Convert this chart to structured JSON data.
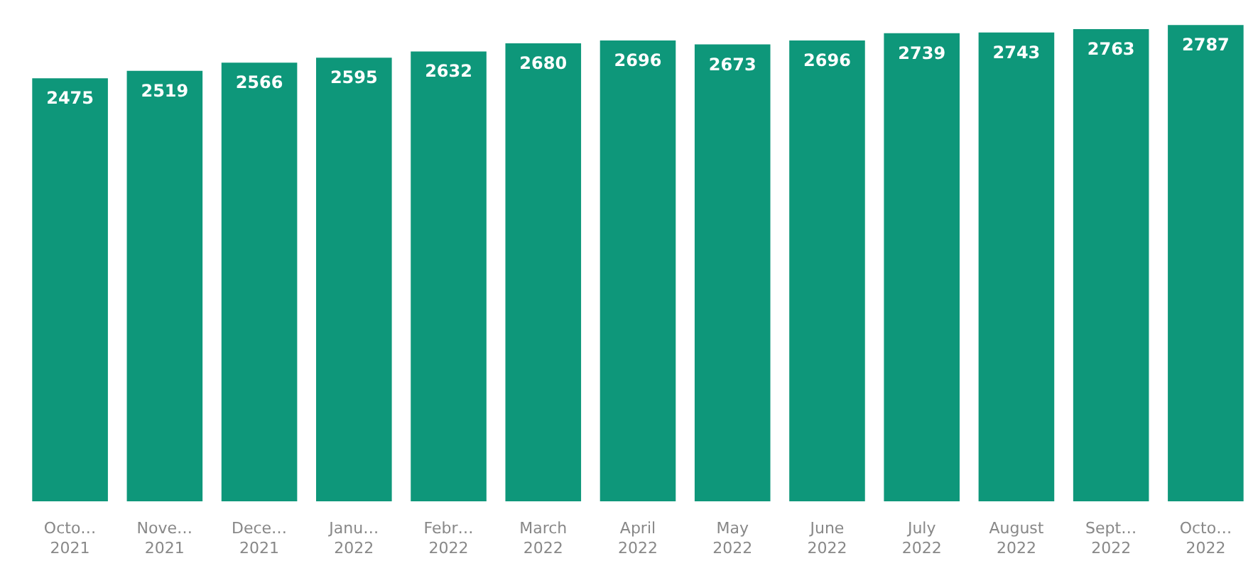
{
  "chart_data": {
    "type": "bar",
    "categories": [
      "Octo…\n2021",
      "Nove…\n2021",
      "Dece…\n2021",
      "Janu…\n2022",
      "Febr…\n2022",
      "March\n2022",
      "April\n2022",
      "May\n2022",
      "June\n2022",
      "July\n2022",
      "August\n2022",
      "Sept…\n2022",
      "Octo…\n2022"
    ],
    "values": [
      2475,
      2519,
      2566,
      2595,
      2632,
      2680,
      2696,
      2673,
      2696,
      2739,
      2743,
      2763,
      2787
    ],
    "color": "#0e977a",
    "ylim": [
      0,
      2800
    ],
    "data_labels": true,
    "tick_labels": "x"
  }
}
